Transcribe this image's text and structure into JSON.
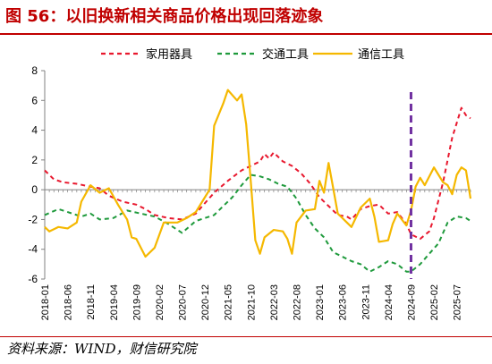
{
  "title": "图 56：以旧换新相关商品价格出现回落迹象",
  "source": "资料来源：WIND，财信研究院",
  "colors": {
    "title": "#c00000",
    "home": "#e8182e",
    "transport": "#1f9a3c",
    "comm": "#f5b800",
    "marker": "#7030a0",
    "axis": "#808080"
  },
  "chart_data": {
    "type": "line",
    "ylim": [
      -6,
      8
    ],
    "yticks": [
      -6,
      -4,
      -2,
      0,
      2,
      4,
      6,
      8
    ],
    "xlim": [
      "2018-01",
      "2025-10"
    ],
    "x_ticks": [
      "2018-01",
      "2018-06",
      "2018-11",
      "2019-04",
      "2019-09",
      "2020-02",
      "2020-07",
      "2020-12",
      "2021-05",
      "2021-10",
      "2022-03",
      "2022-08",
      "2023-01",
      "2023-06",
      "2023-11",
      "2024-04",
      "2024-09",
      "2025-02",
      "2025-07"
    ],
    "vline": "2024-09",
    "legend_position": "top",
    "grid": false,
    "series": [
      {
        "name": "家用器具",
        "style": "dashed",
        "colorKey": "home",
        "points": [
          [
            "2018-01",
            1.3
          ],
          [
            "2018-03",
            0.7
          ],
          [
            "2018-05",
            0.5
          ],
          [
            "2018-08",
            0.4
          ],
          [
            "2018-11",
            0.2
          ],
          [
            "2019-01",
            0.1
          ],
          [
            "2019-03",
            -0.4
          ],
          [
            "2019-06",
            -0.8
          ],
          [
            "2019-09",
            -1.0
          ],
          [
            "2019-11",
            -1.3
          ],
          [
            "2020-01",
            -1.7
          ],
          [
            "2020-04",
            -1.9
          ],
          [
            "2020-07",
            -2.0
          ],
          [
            "2020-10",
            -1.6
          ],
          [
            "2020-12",
            -0.9
          ],
          [
            "2021-02",
            -0.2
          ],
          [
            "2021-05",
            0.6
          ],
          [
            "2021-08",
            1.3
          ],
          [
            "2021-10",
            1.6
          ],
          [
            "2021-12",
            1.9
          ],
          [
            "2022-01",
            2.4
          ],
          [
            "2022-02",
            2.1
          ],
          [
            "2022-03",
            2.5
          ],
          [
            "2022-05",
            1.9
          ],
          [
            "2022-07",
            1.6
          ],
          [
            "2022-09",
            1.1
          ],
          [
            "2022-11",
            0.4
          ],
          [
            "2023-01",
            -0.5
          ],
          [
            "2023-03",
            -1.1
          ],
          [
            "2023-05",
            -1.7
          ],
          [
            "2023-07",
            -1.8
          ],
          [
            "2023-08",
            -2.0
          ],
          [
            "2023-10",
            -1.3
          ],
          [
            "2023-12",
            -1.1
          ],
          [
            "2024-02",
            -1.0
          ],
          [
            "2024-04",
            -1.6
          ],
          [
            "2024-06",
            -1.5
          ],
          [
            "2024-08",
            -2.3
          ],
          [
            "2024-09",
            -3.0
          ],
          [
            "2024-11",
            -3.3
          ],
          [
            "2025-01",
            -2.8
          ],
          [
            "2025-02",
            -1.9
          ],
          [
            "2025-04",
            0.5
          ],
          [
            "2025-06",
            3.5
          ],
          [
            "2025-08",
            5.5
          ],
          [
            "2025-09",
            5.0
          ],
          [
            "2025-10",
            4.8
          ]
        ]
      },
      {
        "name": "交通工具",
        "style": "dashed",
        "colorKey": "transport",
        "points": [
          [
            "2018-01",
            -1.7
          ],
          [
            "2018-04",
            -1.3
          ],
          [
            "2018-06",
            -1.5
          ],
          [
            "2018-09",
            -1.8
          ],
          [
            "2018-11",
            -1.6
          ],
          [
            "2019-01",
            -2.0
          ],
          [
            "2019-04",
            -1.9
          ],
          [
            "2019-07",
            -1.4
          ],
          [
            "2019-10",
            -1.6
          ],
          [
            "2020-01",
            -1.8
          ],
          [
            "2020-04",
            -2.3
          ],
          [
            "2020-07",
            -2.9
          ],
          [
            "2020-10",
            -2.1
          ],
          [
            "2020-12",
            -1.9
          ],
          [
            "2021-02",
            -1.7
          ],
          [
            "2021-04",
            -1.1
          ],
          [
            "2021-06",
            -0.5
          ],
          [
            "2021-08",
            0.3
          ],
          [
            "2021-10",
            1.0
          ],
          [
            "2021-12",
            0.9
          ],
          [
            "2022-02",
            0.7
          ],
          [
            "2022-04",
            0.4
          ],
          [
            "2022-06",
            0.2
          ],
          [
            "2022-08",
            -0.6
          ],
          [
            "2022-10",
            -1.7
          ],
          [
            "2022-12",
            -2.6
          ],
          [
            "2023-02",
            -3.2
          ],
          [
            "2023-04",
            -4.2
          ],
          [
            "2023-06",
            -4.5
          ],
          [
            "2023-08",
            -4.8
          ],
          [
            "2023-10",
            -5.0
          ],
          [
            "2023-12",
            -5.5
          ],
          [
            "2024-02",
            -5.2
          ],
          [
            "2024-04",
            -4.8
          ],
          [
            "2024-06",
            -5.0
          ],
          [
            "2024-08",
            -5.5
          ],
          [
            "2024-09",
            -5.5
          ],
          [
            "2024-11",
            -5.0
          ],
          [
            "2025-01",
            -4.3
          ],
          [
            "2025-03",
            -3.6
          ],
          [
            "2025-05",
            -2.2
          ],
          [
            "2025-07",
            -1.8
          ],
          [
            "2025-09",
            -1.9
          ],
          [
            "2025-10",
            -2.1
          ]
        ]
      },
      {
        "name": "通信工具",
        "style": "solid",
        "colorKey": "comm",
        "points": [
          [
            "2018-01",
            -2.5
          ],
          [
            "2018-02",
            -2.8
          ],
          [
            "2018-04",
            -2.5
          ],
          [
            "2018-06",
            -2.6
          ],
          [
            "2018-08",
            -2.2
          ],
          [
            "2018-09",
            -0.8
          ],
          [
            "2018-11",
            0.3
          ],
          [
            "2019-01",
            -0.2
          ],
          [
            "2019-03",
            0.1
          ],
          [
            "2019-05",
            -1.0
          ],
          [
            "2019-07",
            -2.0
          ],
          [
            "2019-08",
            -3.2
          ],
          [
            "2019-09",
            -3.3
          ],
          [
            "2019-11",
            -4.5
          ],
          [
            "2020-01",
            -3.9
          ],
          [
            "2020-03",
            -2.2
          ],
          [
            "2020-06",
            -2.2
          ],
          [
            "2020-08",
            -1.9
          ],
          [
            "2020-10",
            -1.5
          ],
          [
            "2020-12",
            -0.5
          ],
          [
            "2021-01",
            0.0
          ],
          [
            "2021-02",
            4.3
          ],
          [
            "2021-04",
            5.8
          ],
          [
            "2021-05",
            6.7
          ],
          [
            "2021-07",
            6.0
          ],
          [
            "2021-08",
            6.4
          ],
          [
            "2021-09",
            4.4
          ],
          [
            "2021-10",
            0.6
          ],
          [
            "2021-11",
            -3.4
          ],
          [
            "2021-12",
            -4.3
          ],
          [
            "2022-01",
            -3.2
          ],
          [
            "2022-03",
            -2.7
          ],
          [
            "2022-05",
            -2.8
          ],
          [
            "2022-06",
            -3.3
          ],
          [
            "2022-07",
            -4.3
          ],
          [
            "2022-08",
            -2.2
          ],
          [
            "2022-10",
            -1.4
          ],
          [
            "2022-12",
            -1.3
          ],
          [
            "2023-01",
            0.6
          ],
          [
            "2023-02",
            -0.2
          ],
          [
            "2023-03",
            1.8
          ],
          [
            "2023-04",
            0.1
          ],
          [
            "2023-05",
            -1.6
          ],
          [
            "2023-07",
            -2.2
          ],
          [
            "2023-08",
            -2.5
          ],
          [
            "2023-10",
            -1.2
          ],
          [
            "2023-12",
            -0.6
          ],
          [
            "2024-01",
            -1.8
          ],
          [
            "2024-02",
            -3.5
          ],
          [
            "2024-04",
            -3.4
          ],
          [
            "2024-05",
            -2.3
          ],
          [
            "2024-06",
            -1.6
          ],
          [
            "2024-07",
            -2.0
          ],
          [
            "2024-08",
            -2.4
          ],
          [
            "2024-09",
            -1.4
          ],
          [
            "2024-10",
            0.2
          ],
          [
            "2024-11",
            0.8
          ],
          [
            "2024-12",
            0.3
          ],
          [
            "2025-02",
            1.5
          ],
          [
            "2025-03",
            1.0
          ],
          [
            "2025-04",
            0.5
          ],
          [
            "2025-05",
            0.3
          ],
          [
            "2025-06",
            -0.3
          ],
          [
            "2025-07",
            1.0
          ],
          [
            "2025-08",
            1.5
          ],
          [
            "2025-09",
            1.3
          ],
          [
            "2025-10",
            -0.6
          ]
        ]
      }
    ]
  }
}
